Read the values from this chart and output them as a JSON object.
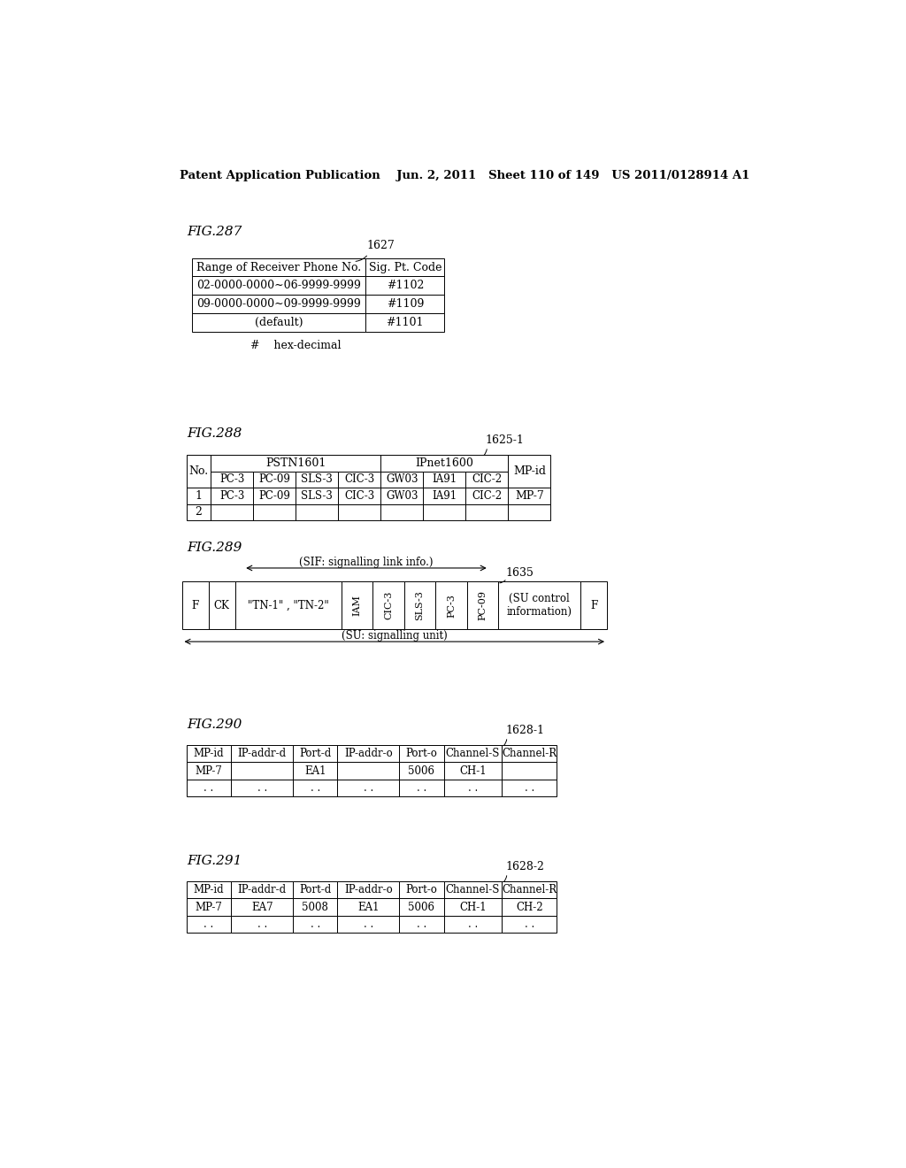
{
  "bg_color": "#ffffff",
  "header_text": "Patent Application Publication    Jun. 2, 2011   Sheet 110 of 149   US 2011/0128914 A1",
  "fig287_label": "FIG.287",
  "fig287_note": "1627",
  "fig287_table_headers": [
    "Range of Receiver Phone No.",
    "Sig. Pt. Code"
  ],
  "fig287_table_rows": [
    [
      "02-0000-0000∼06-9999-9999",
      "#1102"
    ],
    [
      "09-0000-0000∼09-9999-9999",
      "#1109"
    ],
    [
      "(default)",
      "#1101"
    ]
  ],
  "fig287_footnote": "#    hex-decimal",
  "fig288_label": "FIG.288",
  "fig288_note": "1625-1",
  "fig288_table_col0_header": "No.",
  "fig288_pstn_header": "PSTN1601",
  "fig288_ipnet_header": "IPnet1600",
  "fig288_mpid_header": "MP-id",
  "fig288_sub_headers": [
    "PC-3",
    "PC-09",
    "SLS-3",
    "CIC-3",
    "GW03",
    "IA91",
    "CIC-2"
  ],
  "fig288_row1_no": "1",
  "fig288_row1_data": [
    "PC-3",
    "PC-09",
    "SLS-3",
    "CIC-3",
    "GW03",
    "IA91",
    "CIC-2"
  ],
  "fig288_row1_mpid": "MP-7",
  "fig288_row2_no": "2",
  "fig289_label": "FIG.289",
  "fig289_note": "1635",
  "fig289_sif_label": "(SIF: signalling link info.)",
  "fig289_su_label": "(SU: signalling unit)",
  "fig289_cells": [
    "F",
    "CK",
    "\"TN-1\" , \"TN-2\"",
    "IAM",
    "CIC-3",
    "SLS-3",
    "PC-3",
    "PC-09",
    "(SU control\ninformation)",
    "F"
  ],
  "fig289_widths_rel": [
    0.55,
    0.55,
    2.2,
    0.65,
    0.65,
    0.65,
    0.65,
    0.65,
    1.7,
    0.55
  ],
  "fig290_label": "FIG.290",
  "fig290_note": "1628-1",
  "fig290_headers": [
    "MP-id",
    "IP-addr-d",
    "Port-d",
    "IP-addr-o",
    "Port-o",
    "Channel-S",
    "Channel-R"
  ],
  "fig290_row1": [
    "MP-7",
    "",
    "EA1",
    "",
    "5006",
    "CH-1",
    ""
  ],
  "fig290_row2": [
    ". .",
    ". .",
    ". .",
    ". .",
    ". .",
    ". .",
    ". ."
  ],
  "fig291_label": "FIG.291",
  "fig291_note": "1628-2",
  "fig291_headers": [
    "MP-id",
    "IP-addr-d",
    "Port-d",
    "IP-addr-o",
    "Port-o",
    "Channel-S",
    "Channel-R"
  ],
  "fig291_row1": [
    "MP-7",
    "EA7",
    "5008",
    "EA1",
    "5006",
    "CH-1",
    "CH-2"
  ],
  "fig291_row2": [
    ". .",
    ". .",
    ". .",
    ". .",
    ". .",
    ". .",
    ". ."
  ]
}
